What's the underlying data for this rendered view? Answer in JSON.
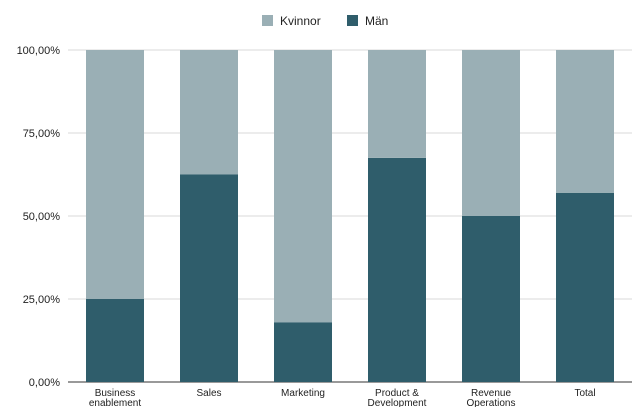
{
  "chart_data": {
    "type": "bar",
    "stacked": true,
    "categories": [
      [
        "Business",
        "enablement"
      ],
      [
        "Sales"
      ],
      [
        "Marketing"
      ],
      [
        "Product &",
        "Development"
      ],
      [
        "Revenue",
        "Operations"
      ],
      [
        "Total"
      ]
    ],
    "series": [
      {
        "name": "Kvinnor",
        "color": "#9aafb5",
        "values": [
          75.0,
          37.5,
          82.0,
          32.5,
          50.0,
          43.0
        ]
      },
      {
        "name": "Män",
        "color": "#2f5d6b",
        "values": [
          25.0,
          62.5,
          18.0,
          67.5,
          50.0,
          57.0
        ]
      }
    ],
    "stack_order": [
      "Män",
      "Kvinnor"
    ],
    "ylim": [
      0,
      100
    ],
    "yticks": [
      0,
      25,
      50,
      75,
      100
    ],
    "ytick_labels": [
      "0,00%",
      "25,00%",
      "50,00%",
      "75,00%",
      "100,00%"
    ],
    "grid": true,
    "legend": {
      "placement": "top-center"
    }
  }
}
